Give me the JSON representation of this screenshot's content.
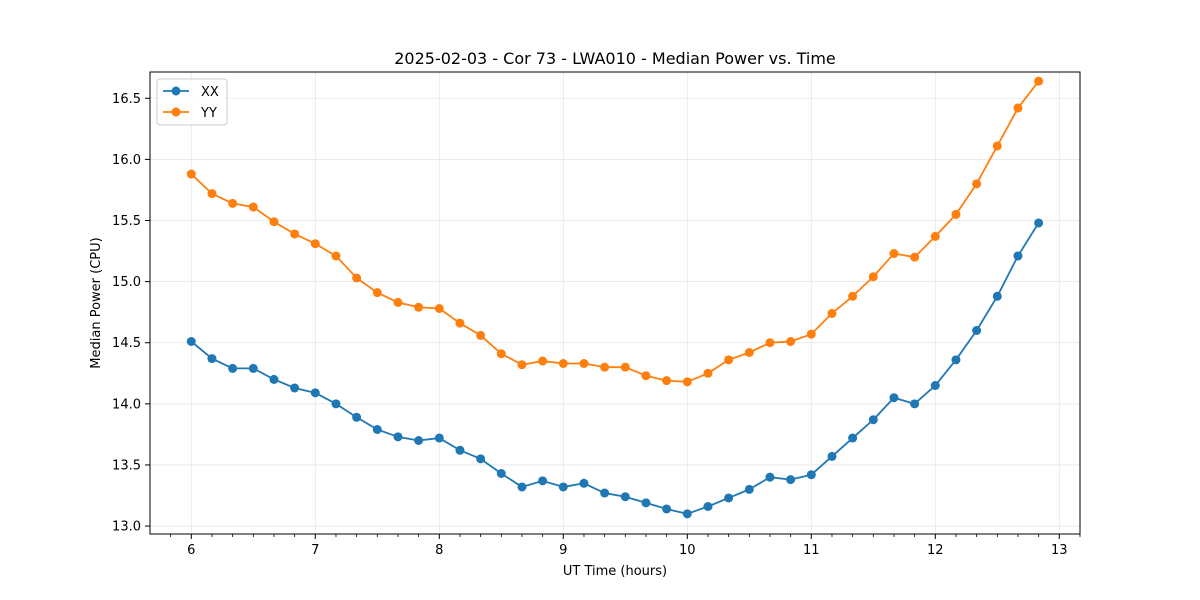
{
  "chart_data": {
    "type": "line",
    "title": "2025-02-03 - Cor 73 - LWA010 - Median Power vs. Time",
    "xlabel": "UT Time (hours)",
    "ylabel": "Median Power (CPU)",
    "xlim": [
      5.667,
      13.167
    ],
    "ylim": [
      12.935,
      16.715
    ],
    "x_ticks": [
      6,
      7,
      8,
      9,
      10,
      11,
      12,
      13
    ],
    "y_ticks": [
      13.0,
      13.5,
      14.0,
      14.5,
      15.0,
      15.5,
      16.0,
      16.5
    ],
    "x_minor_step": 0.16667,
    "grid": true,
    "legend_position": "top-left",
    "x": [
      6.0,
      6.1667,
      6.3333,
      6.5,
      6.6667,
      6.8333,
      7.0,
      7.1667,
      7.3333,
      7.5,
      7.6667,
      7.8333,
      8.0,
      8.1667,
      8.3333,
      8.5,
      8.6667,
      8.8333,
      9.0,
      9.1667,
      9.3333,
      9.5,
      9.6667,
      9.8333,
      10.0,
      10.1667,
      10.3333,
      10.5,
      10.6667,
      10.8333,
      11.0,
      11.1667,
      11.3333,
      11.5,
      11.6667,
      11.8333,
      12.0,
      12.1667,
      12.3333,
      12.5,
      12.6667,
      12.8333
    ],
    "series": [
      {
        "name": "XX",
        "color": "#1f77b4",
        "values": [
          14.51,
          14.37,
          14.29,
          14.29,
          14.2,
          14.13,
          14.09,
          14.0,
          13.89,
          13.79,
          13.73,
          13.7,
          13.72,
          13.62,
          13.55,
          13.43,
          13.32,
          13.37,
          13.32,
          13.35,
          13.27,
          13.24,
          13.19,
          13.14,
          13.1,
          13.16,
          13.23,
          13.3,
          13.4,
          13.38,
          13.42,
          13.57,
          13.72,
          13.87,
          14.05,
          14.0,
          14.15,
          14.36,
          14.6,
          14.88,
          15.21,
          15.48
        ]
      },
      {
        "name": "YY",
        "color": "#ff7f0e",
        "values": [
          15.88,
          15.72,
          15.64,
          15.61,
          15.49,
          15.39,
          15.31,
          15.21,
          15.03,
          14.91,
          14.83,
          14.79,
          14.78,
          14.66,
          14.56,
          14.41,
          14.32,
          14.35,
          14.33,
          14.33,
          14.3,
          14.3,
          14.23,
          14.19,
          14.18,
          14.25,
          14.36,
          14.42,
          14.5,
          14.51,
          14.57,
          14.74,
          14.88,
          15.04,
          15.23,
          15.2,
          15.37,
          15.55,
          15.8,
          16.11,
          16.42,
          16.64
        ]
      }
    ]
  }
}
